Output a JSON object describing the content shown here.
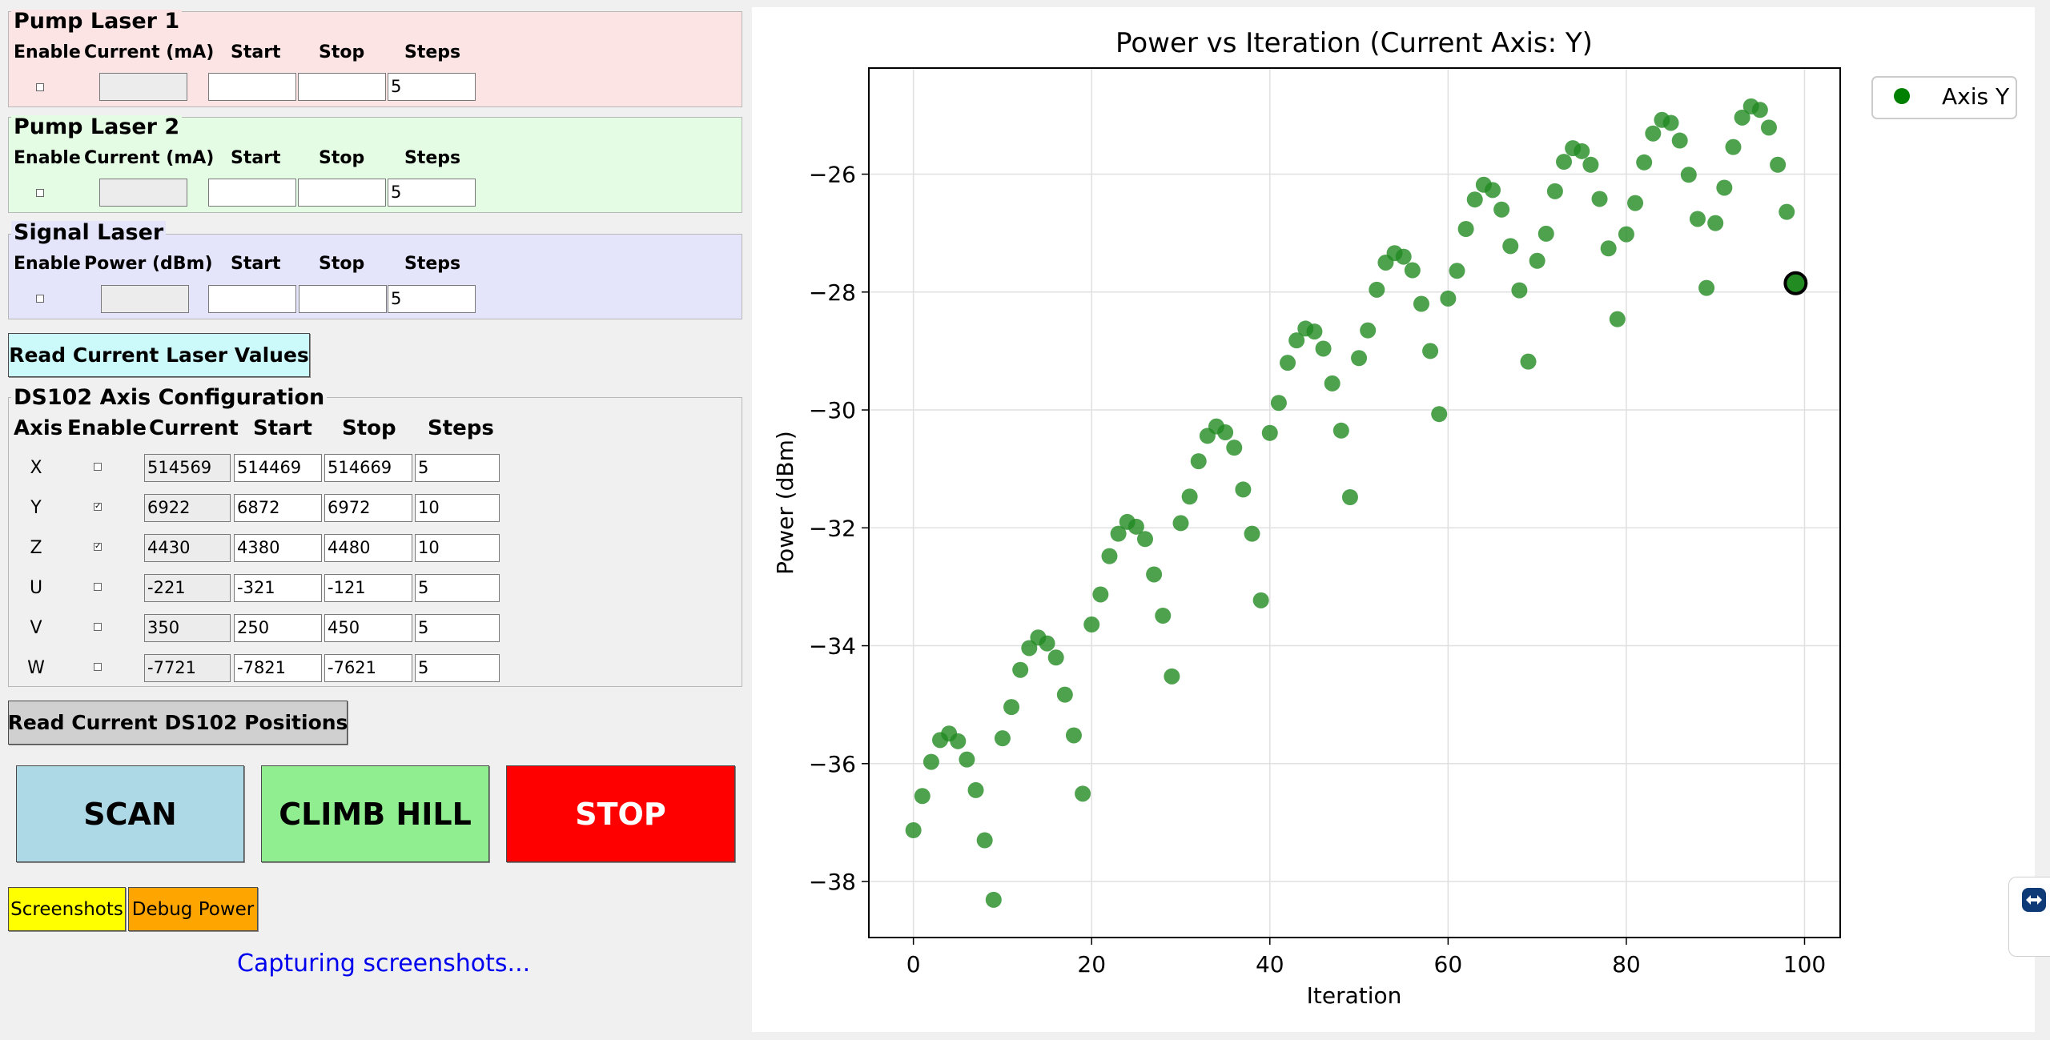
{
  "pump1": {
    "title": "Pump Laser 1",
    "headers": [
      "Enable",
      "Current (mA)",
      "Start",
      "Stop",
      "Steps"
    ],
    "current": "",
    "start": "",
    "stop": "",
    "steps": "5",
    "enabled": false
  },
  "pump2": {
    "title": "Pump Laser 2",
    "headers": [
      "Enable",
      "Current (mA)",
      "Start",
      "Stop",
      "Steps"
    ],
    "current": "",
    "start": "",
    "stop": "",
    "steps": "5",
    "enabled": false
  },
  "signal": {
    "title": "Signal Laser",
    "headers": [
      "Enable",
      "Power (dBm)",
      "Start",
      "Stop",
      "Steps"
    ],
    "current": "",
    "start": "",
    "stop": "",
    "steps": "5",
    "enabled": false
  },
  "read_laser_button": "Read Current Laser Values",
  "ds102": {
    "title": "DS102 Axis Configuration",
    "headers": [
      "Axis",
      "Enable",
      "Current",
      "Start",
      "Stop",
      "Steps"
    ],
    "rows": [
      {
        "axis": "X",
        "enabled": false,
        "current": "514569",
        "start": "514469",
        "stop": "514669",
        "steps": "5"
      },
      {
        "axis": "Y",
        "enabled": true,
        "current": "6922",
        "start": "6872",
        "stop": "6972",
        "steps": "10"
      },
      {
        "axis": "Z",
        "enabled": true,
        "current": "4430",
        "start": "4380",
        "stop": "4480",
        "steps": "10"
      },
      {
        "axis": "U",
        "enabled": false,
        "current": "-221",
        "start": "-321",
        "stop": "-121",
        "steps": "5"
      },
      {
        "axis": "V",
        "enabled": false,
        "current": "350",
        "start": "250",
        "stop": "450",
        "steps": "5"
      },
      {
        "axis": "W",
        "enabled": false,
        "current": "-7721",
        "start": "-7821",
        "stop": "-7621",
        "steps": "5"
      }
    ]
  },
  "read_ds102_button": "Read Current DS102 Positions",
  "actions": {
    "scan": "SCAN",
    "climb": "CLIMB HILL",
    "stop": "STOP"
  },
  "small_buttons": {
    "screenshots": "Screenshots",
    "debug": "Debug Power"
  },
  "status": "Capturing screenshots...",
  "colors": {
    "pump1_bg": "#fde4e4",
    "pump2_bg": "#e4fbe4",
    "signal_bg": "#e4e4fa",
    "read_laser_bg": "#ccfafa",
    "scan_bg": "#add8e6",
    "climb_bg": "#90ee90",
    "stop_bg": "#ff0000",
    "screenshots_bg": "#ffff00",
    "debug_bg": "#ffa500",
    "status_text": "#0000ee",
    "marker": "#228b22"
  },
  "chart_data": {
    "type": "scatter",
    "title": "Power vs Iteration (Current Axis: Y)",
    "xlabel": "Iteration",
    "ylabel": "Power (dBm)",
    "xlim": [
      -5,
      104
    ],
    "ylim": [
      -38.95,
      -24.2
    ],
    "xticks": [
      0,
      20,
      40,
      60,
      80,
      100
    ],
    "yticks": [
      -38,
      -36,
      -34,
      -32,
      -30,
      -28,
      -26
    ],
    "grid": true,
    "legend_position": "outside-right",
    "series": [
      {
        "name": "Axis Y",
        "x": [
          0,
          1,
          2,
          3,
          4,
          5,
          6,
          7,
          8,
          9,
          10,
          11,
          12,
          13,
          14,
          15,
          16,
          17,
          18,
          19,
          20,
          21,
          22,
          23,
          24,
          25,
          26,
          27,
          28,
          29,
          30,
          31,
          32,
          33,
          34,
          35,
          36,
          37,
          38,
          39,
          40,
          41,
          42,
          43,
          44,
          45,
          46,
          47,
          48,
          49,
          50,
          51,
          52,
          53,
          54,
          55,
          56,
          57,
          58,
          59,
          60,
          61,
          62,
          63,
          64,
          65,
          66,
          67,
          68,
          69,
          70,
          71,
          72,
          73,
          74,
          75,
          76,
          77,
          78,
          79,
          80,
          81,
          82,
          83,
          84,
          85,
          86,
          87,
          88,
          89,
          90,
          91,
          92,
          93,
          94,
          95,
          96,
          97,
          98
        ],
        "y": [
          -37.13,
          -36.55,
          -35.97,
          -35.6,
          -35.49,
          -35.62,
          -35.93,
          -36.45,
          -37.3,
          -38.31,
          -35.57,
          -35.04,
          -34.41,
          -34.04,
          -33.86,
          -33.96,
          -34.2,
          -34.83,
          -35.52,
          -36.51,
          -33.64,
          -33.13,
          -32.48,
          -32.1,
          -31.9,
          -31.98,
          -32.19,
          -32.79,
          -33.49,
          -34.52,
          -31.92,
          -31.47,
          -30.87,
          -30.44,
          -30.28,
          -30.38,
          -30.64,
          -31.35,
          -32.1,
          -33.23,
          -30.39,
          -29.88,
          -29.2,
          -28.82,
          -28.62,
          -28.67,
          -28.96,
          -29.55,
          -30.35,
          -31.48,
          -29.12,
          -28.65,
          -27.96,
          -27.5,
          -27.34,
          -27.4,
          -27.63,
          -28.2,
          -29.0,
          -30.07,
          -28.11,
          -27.64,
          -26.93,
          -26.43,
          -26.18,
          -26.27,
          -26.6,
          -27.22,
          -27.97,
          -29.18,
          -27.47,
          -27.01,
          -26.29,
          -25.79,
          -25.56,
          -25.61,
          -25.84,
          -26.42,
          -27.26,
          -28.46,
          -27.02,
          -26.49,
          -25.8,
          -25.31,
          -25.08,
          -25.13,
          -25.43,
          -26.01,
          -26.76,
          -27.93,
          -26.83,
          -26.23,
          -25.54,
          -25.04,
          -24.85,
          -24.91,
          -25.21,
          -25.84,
          -26.64
        ]
      }
    ],
    "highlight_point": {
      "x": 99,
      "y": -27.85
    }
  }
}
